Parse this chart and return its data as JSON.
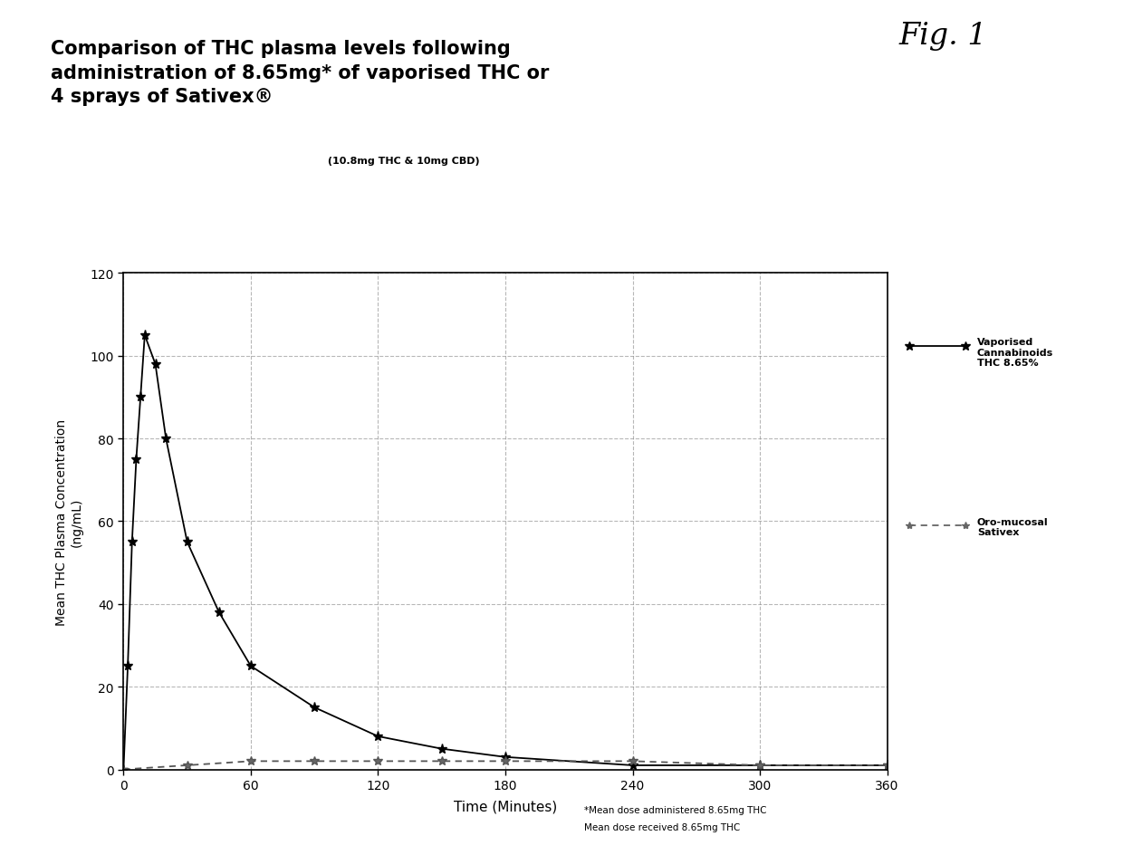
{
  "title_line1": "Comparison of THC plasma levels following",
  "title_line2": "administration of 8.65mg* of vaporised THC or",
  "title_line3": "4 sprays of Sativex®",
  "title_line3_small": " (10.8mg THC & 10mg CBD)",
  "fig_label": "Fig. 1",
  "xlabel": "Time (Minutes)",
  "ylabel": "Mean THC Plasma Concentration\n(ng/mL)",
  "xlim": [
    0,
    360
  ],
  "ylim": [
    0,
    120
  ],
  "xticks": [
    0,
    60,
    120,
    180,
    240,
    300,
    360
  ],
  "yticks": [
    0,
    20,
    40,
    60,
    80,
    100,
    120
  ],
  "vaporised_x": [
    0,
    2,
    4,
    6,
    8,
    10,
    15,
    20,
    30,
    45,
    60,
    90,
    120,
    150,
    180,
    240,
    300,
    360
  ],
  "vaporised_y": [
    0,
    25,
    55,
    75,
    90,
    105,
    98,
    80,
    55,
    38,
    25,
    15,
    8,
    5,
    3,
    1,
    1,
    1
  ],
  "sativex_x": [
    0,
    30,
    60,
    90,
    120,
    150,
    180,
    240,
    300,
    360
  ],
  "sativex_y": [
    0,
    1,
    2,
    2,
    2,
    2,
    2,
    2,
    1,
    1
  ],
  "legend1": "Vaporised\nCannabinoids\nTHC 8.65%",
  "legend2": "Oro-mucosal\nSativex",
  "footnote1": "*Mean dose administered 8.65mg THC",
  "footnote2": "Mean dose received 8.65mg THC",
  "background_color": "#ffffff",
  "line1_color": "#000000",
  "line2_color": "#555555",
  "grid_color": "#888888",
  "title_bg_color": "#b8b8b8"
}
